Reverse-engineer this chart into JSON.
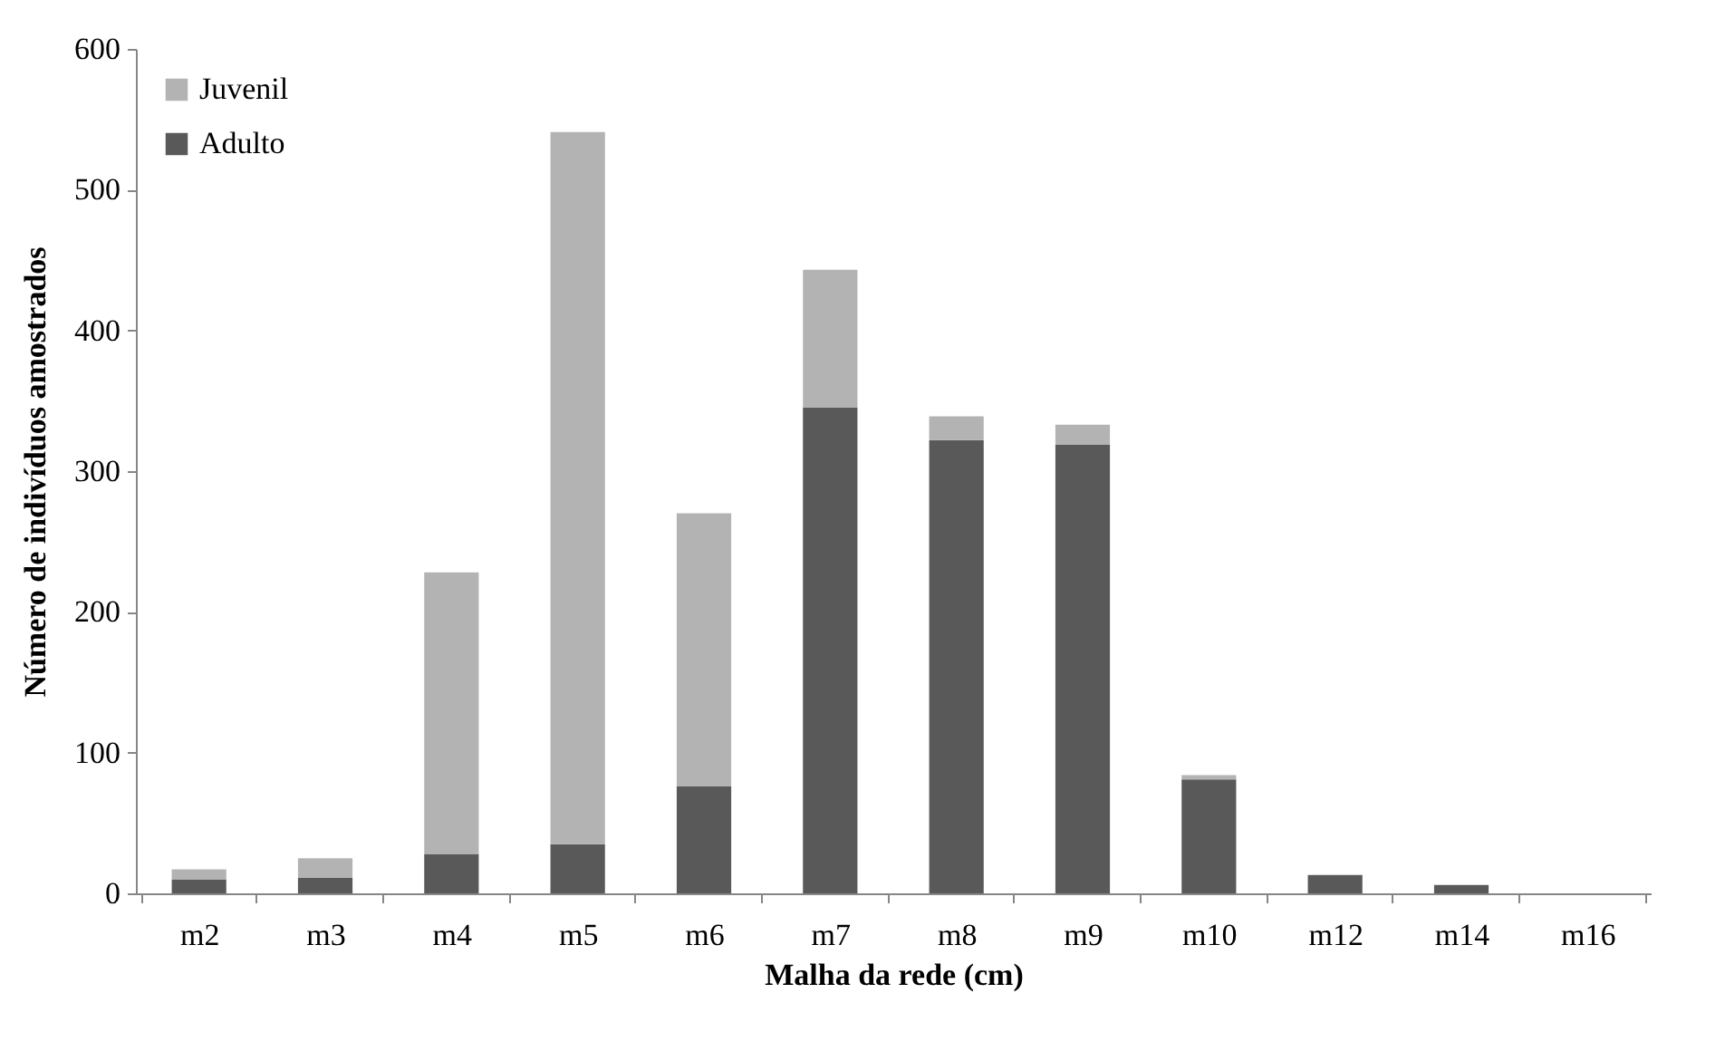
{
  "chart_data": {
    "type": "bar",
    "stacked": true,
    "xlabel": "Malha da rede (cm)",
    "ylabel": "Número de indivíduos amostrados",
    "categories": [
      "m2",
      "m3",
      "m4",
      "m5",
      "m6",
      "m7",
      "m8",
      "m9",
      "m10",
      "m12",
      "m14",
      "m16"
    ],
    "series": [
      {
        "name": "Adulto",
        "color": "#595959",
        "values": [
          10,
          11,
          28,
          35,
          76,
          345,
          322,
          319,
          81,
          13,
          6,
          0
        ]
      },
      {
        "name": "Juvenil",
        "color": "#b3b3b3",
        "values": [
          7,
          14,
          200,
          506,
          194,
          98,
          17,
          14,
          3,
          null,
          0,
          0
        ]
      }
    ],
    "ylim": [
      0,
      600
    ],
    "yticks": [
      0,
      100,
      200,
      300,
      400,
      500,
      600
    ],
    "grid": false,
    "legend": "top left"
  }
}
